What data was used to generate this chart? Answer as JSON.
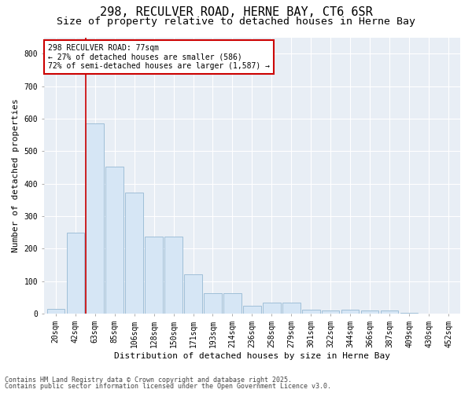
{
  "title_line1": "298, RECULVER ROAD, HERNE BAY, CT6 6SR",
  "title_line2": "Size of property relative to detached houses in Herne Bay",
  "xlabel": "Distribution of detached houses by size in Herne Bay",
  "ylabel": "Number of detached properties",
  "categories": [
    "20sqm",
    "42sqm",
    "63sqm",
    "85sqm",
    "106sqm",
    "128sqm",
    "150sqm",
    "171sqm",
    "193sqm",
    "214sqm",
    "236sqm",
    "258sqm",
    "279sqm",
    "301sqm",
    "322sqm",
    "344sqm",
    "366sqm",
    "387sqm",
    "409sqm",
    "430sqm",
    "452sqm"
  ],
  "values": [
    15,
    248,
    586,
    453,
    372,
    237,
    237,
    120,
    63,
    63,
    25,
    35,
    35,
    12,
    10,
    12,
    10,
    10,
    3,
    0,
    0
  ],
  "bar_color": "#d6e6f5",
  "bar_edge_color": "#a0bfd8",
  "vline_color": "#cc0000",
  "annotation_text": "298 RECULVER ROAD: 77sqm\n← 27% of detached houses are smaller (586)\n72% of semi-detached houses are larger (1,587) →",
  "annotation_box_facecolor": "#ffffff",
  "annotation_box_edgecolor": "#cc0000",
  "ylim": [
    0,
    850
  ],
  "yticks": [
    0,
    100,
    200,
    300,
    400,
    500,
    600,
    700,
    800
  ],
  "fig_facecolor": "#ffffff",
  "plot_facecolor": "#e8eef5",
  "footer_line1": "Contains HM Land Registry data © Crown copyright and database right 2025.",
  "footer_line2": "Contains public sector information licensed under the Open Government Licence v3.0.",
  "title_fontsize": 11,
  "subtitle_fontsize": 9.5,
  "tick_fontsize": 7,
  "label_fontsize": 8,
  "annotation_fontsize": 7,
  "footer_fontsize": 6
}
